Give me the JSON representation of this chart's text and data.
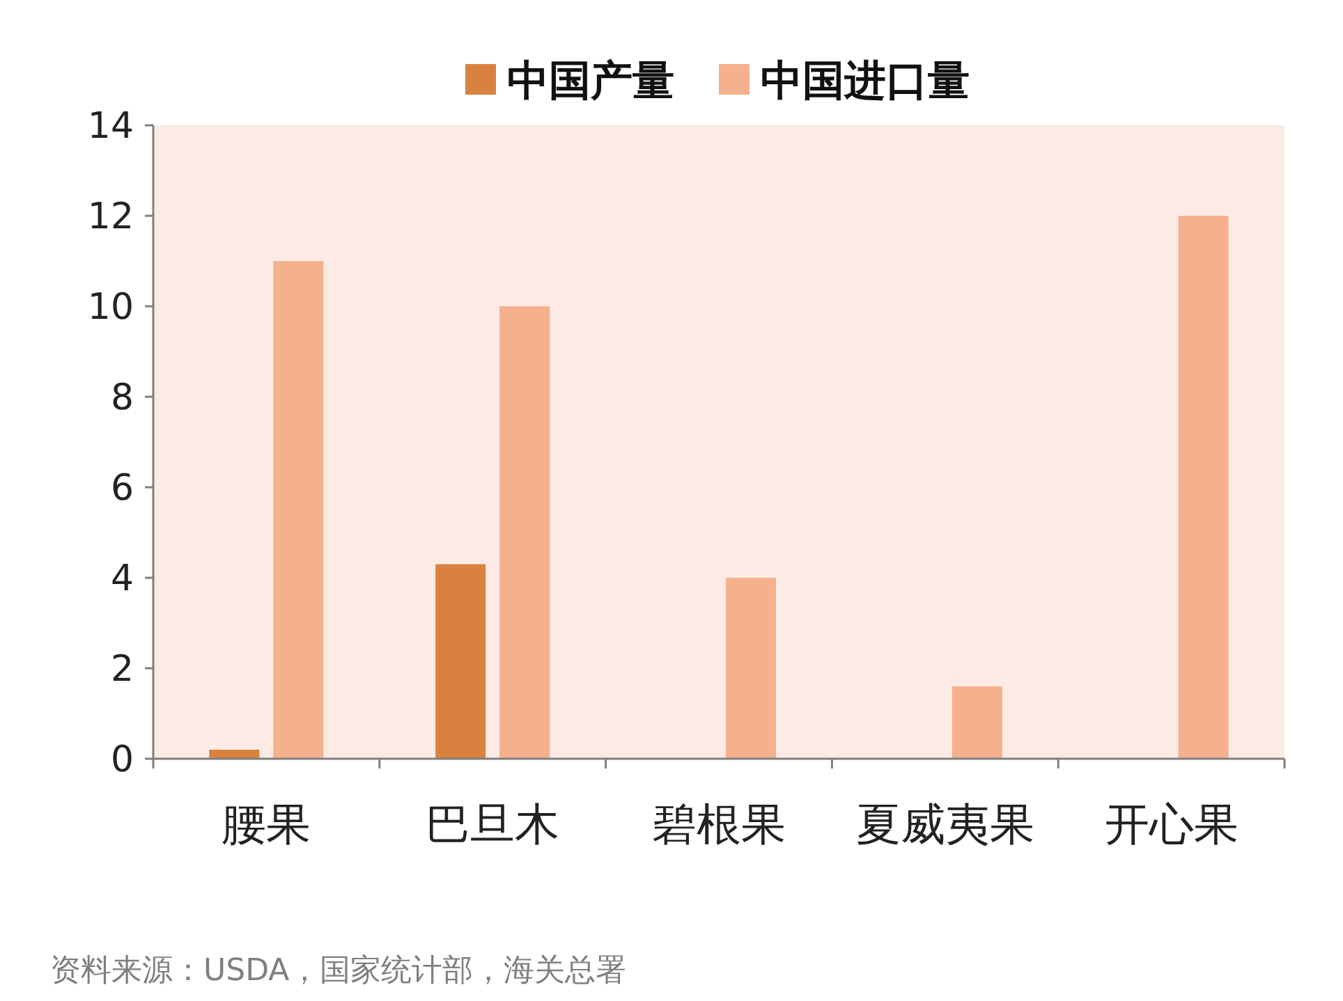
{
  "chart_data": {
    "type": "bar",
    "categories": [
      "腰果",
      "巴旦木",
      "碧根果",
      "夏威夷果",
      "开心果"
    ],
    "series": [
      {
        "name": "中国产量",
        "color": "#d9823f",
        "values": [
          0.2,
          4.3,
          null,
          null,
          null
        ]
      },
      {
        "name": "中国进口量",
        "color": "#f5b18d",
        "values": [
          11,
          10,
          4,
          1.6,
          12
        ]
      }
    ],
    "ylim": [
      0,
      14
    ],
    "yticks": [
      0,
      2,
      4,
      6,
      8,
      10,
      12,
      14
    ],
    "legend": "top",
    "annotations": [
      "资料来源：USDA，国家统计部，海关总署"
    ]
  }
}
